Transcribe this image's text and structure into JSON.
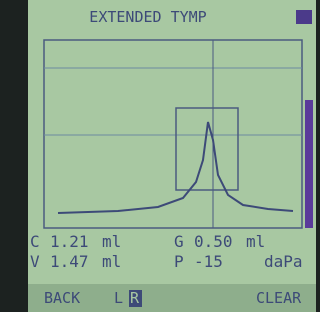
{
  "header": {
    "title": "EXTENDED TYMP"
  },
  "readings": [
    {
      "label": "C",
      "value": "1.21",
      "unit": "ml"
    },
    {
      "label": "G",
      "value": "0.50",
      "unit": "ml"
    },
    {
      "label": "V",
      "value": "1.47",
      "unit": "ml"
    },
    {
      "label": "P",
      "value": "-15",
      "unit": "daPa"
    }
  ],
  "footer": {
    "back": "BACK",
    "left": "L",
    "right": "R",
    "clear": "CLEAR"
  }
}
